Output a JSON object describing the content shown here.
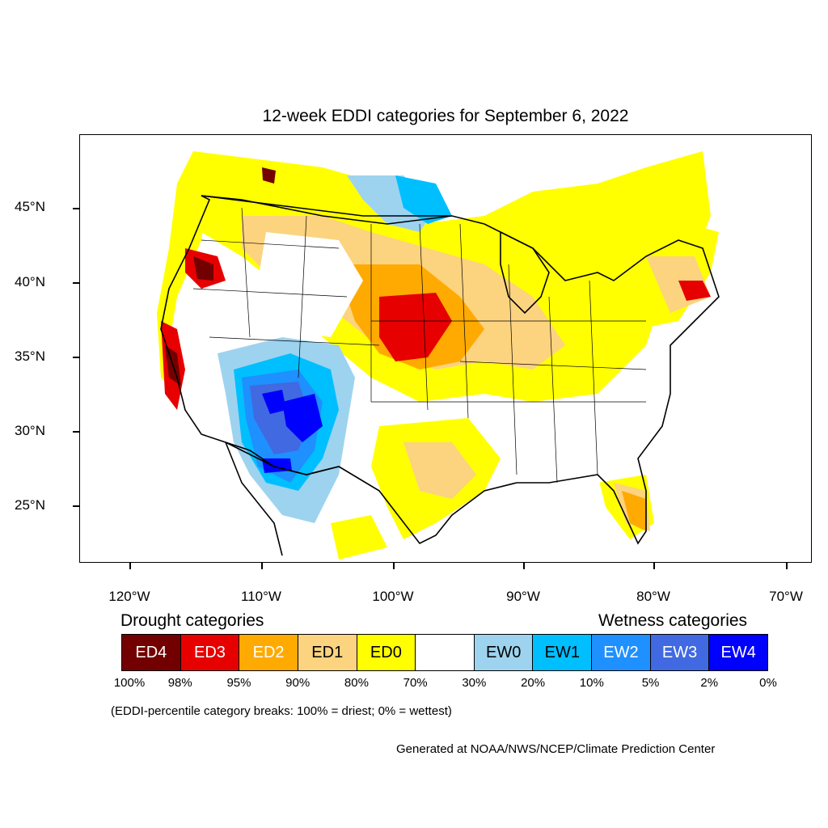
{
  "title": "12-week EDDI categories for September 6, 2022",
  "axes": {
    "lat_labels": [
      "45°N",
      "40°N",
      "35°N",
      "30°N",
      "25°N"
    ],
    "lon_labels": [
      "120°W",
      "110°W",
      "100°W",
      "90°W",
      "80°W",
      "70°W"
    ]
  },
  "legend": {
    "drought_heading": "Drought categories",
    "wetness_heading": "Wetness categories",
    "categories": [
      {
        "label": "ED4",
        "color": "#730000",
        "text_color": "#ffffff"
      },
      {
        "label": "ED3",
        "color": "#e60000",
        "text_color": "#ffffff"
      },
      {
        "label": "ED2",
        "color": "#ffaa00",
        "text_color": "#ffffff"
      },
      {
        "label": "ED1",
        "color": "#fcd37f",
        "text_color": "#000000"
      },
      {
        "label": "ED0",
        "color": "#ffff00",
        "text_color": "#000000"
      },
      {
        "label": "",
        "color": "#ffffff",
        "text_color": "#000000"
      },
      {
        "label": "EW0",
        "color": "#9dd3ef",
        "text_color": "#000000"
      },
      {
        "label": "EW1",
        "color": "#00bfff",
        "text_color": "#000000"
      },
      {
        "label": "EW2",
        "color": "#1e90ff",
        "text_color": "#ffffff"
      },
      {
        "label": "EW3",
        "color": "#4169e1",
        "text_color": "#ffffff"
      },
      {
        "label": "EW4",
        "color": "#0000ff",
        "text_color": "#ffffff"
      }
    ],
    "breaks": [
      "100%",
      "98%",
      "95%",
      "90%",
      "80%",
      "70%",
      "30%",
      "20%",
      "10%",
      "5%",
      "2%",
      "0%"
    ]
  },
  "note": "(EDDI-percentile category breaks: 100% = driest; 0% = wettest)",
  "credit": "Generated at NOAA/NWS/NCEP/Climate Prediction Center"
}
